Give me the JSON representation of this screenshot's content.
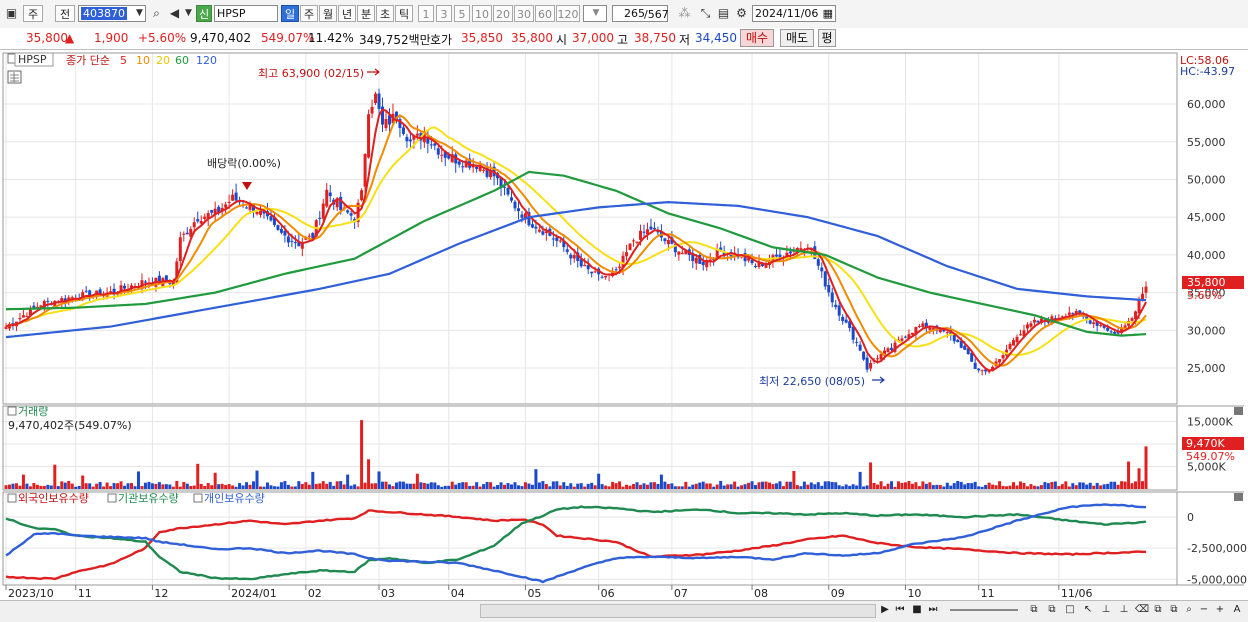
{
  "toolbar": {
    "period_week": "주",
    "period_prev": "전",
    "code": "403870",
    "badge": "신",
    "name": "HPSP",
    "periods": [
      "일",
      "주",
      "월",
      "년",
      "분",
      "초",
      "틱"
    ],
    "intervals": [
      "1",
      "3",
      "5",
      "10",
      "20",
      "30",
      "60",
      "120"
    ],
    "count": "265",
    "total": "/567",
    "date": "2024/11/06"
  },
  "quote": {
    "price": "35,800",
    "arrow": "▲",
    "change": "1,900",
    "rate": "+5.60%",
    "volume": "9,470,402",
    "vol_ratio": "549.07%",
    "turnover": "11.42%",
    "amount": "349,752백만",
    "ask_label": "호가",
    "ask": "35,850",
    "bid": "35,800",
    "open_label": "시",
    "open": "37,000",
    "high_label": "고",
    "high": "38,750",
    "low_label": "저",
    "low": "34,450",
    "buy": "매수",
    "sell": "매도",
    "eval": "평"
  },
  "legend": {
    "symbol": "HPSP",
    "ma_label": "종가 단순",
    "ma_periods": [
      "5",
      "10",
      "20",
      "60",
      "120"
    ],
    "ma_colors": [
      "#e02020",
      "#f08c00",
      "#f7e016",
      "#1f9a3c",
      "#2f5fd9"
    ]
  },
  "colors": {
    "up": "#e02020",
    "down": "#1c49c9",
    "foreign": "#e02020",
    "institution": "#1f8a50",
    "individual": "#2f5fd9",
    "grid": "#e6e6e6"
  },
  "chart_data": [
    {
      "type": "candlestick",
      "ylim": [
        20500,
        66500
      ],
      "yticks": [
        "25,000",
        "30,000",
        "35,000",
        "40,000",
        "45,000",
        "50,000",
        "55,000",
        "60,000"
      ],
      "lc": "LC:58.06",
      "hc": "HC:-43.97",
      "last_price": "35,800",
      "last_rate": "5.60%",
      "x_labels": [
        "2023/10",
        "11",
        "12",
        "2024/01",
        "02",
        "03",
        "04",
        "05",
        "06",
        "07",
        "08",
        "09",
        "10",
        "11",
        "11/06"
      ],
      "annotations": {
        "high": "최고 63,900 (02/15)",
        "low": "최저 22,650 (08/05)",
        "dividend": "배당락(0.00%)"
      },
      "close_anchors": [
        [
          0,
          30500
        ],
        [
          10,
          33500
        ],
        [
          20,
          34500
        ],
        [
          30,
          35000
        ],
        [
          40,
          36500
        ],
        [
          48,
          36500
        ],
        [
          50,
          42000
        ],
        [
          55,
          45000
        ],
        [
          60,
          45500
        ],
        [
          65,
          47500
        ],
        [
          72,
          46000
        ],
        [
          78,
          43000
        ],
        [
          84,
          41500
        ],
        [
          88,
          42500
        ],
        [
          92,
          48500
        ],
        [
          96,
          46000
        ],
        [
          100,
          45000
        ],
        [
          102,
          48000
        ],
        [
          104,
          59500
        ],
        [
          106,
          61000
        ],
        [
          108,
          57000
        ],
        [
          112,
          58500
        ],
        [
          116,
          55000
        ],
        [
          120,
          56000
        ],
        [
          125,
          53500
        ],
        [
          130,
          52500
        ],
        [
          135,
          52000
        ],
        [
          140,
          50500
        ],
        [
          145,
          47000
        ],
        [
          150,
          44500
        ],
        [
          155,
          43000
        ],
        [
          160,
          41000
        ],
        [
          165,
          38500
        ],
        [
          170,
          37000
        ],
        [
          175,
          37500
        ],
        [
          180,
          42000
        ],
        [
          185,
          43500
        ],
        [
          190,
          41500
        ],
        [
          195,
          40000
        ],
        [
          200,
          39000
        ],
        [
          205,
          40500
        ],
        [
          210,
          40000
        ],
        [
          215,
          38500
        ],
        [
          220,
          39500
        ],
        [
          225,
          40500
        ],
        [
          230,
          41500
        ],
        [
          233,
          38500
        ],
        [
          237,
          34000
        ],
        [
          242,
          30000
        ],
        [
          245,
          27500
        ],
        [
          247,
          25000
        ],
        [
          250,
          26500
        ],
        [
          254,
          27500
        ],
        [
          258,
          29500
        ],
        [
          262,
          30500
        ],
        [
          266,
          30500
        ],
        [
          270,
          29500
        ],
        [
          274,
          28000
        ],
        [
          278,
          25000
        ],
        [
          281,
          24500
        ],
        [
          285,
          26000
        ],
        [
          290,
          29500
        ],
        [
          295,
          31000
        ],
        [
          300,
          31500
        ],
        [
          305,
          32500
        ],
        [
          310,
          31500
        ],
        [
          315,
          30500
        ],
        [
          318,
          29500
        ],
        [
          321,
          30500
        ],
        [
          323,
          32000
        ],
        [
          325,
          34000
        ],
        [
          327,
          35800
        ]
      ],
      "ma60_anchors": [
        [
          0,
          32800
        ],
        [
          20,
          33000
        ],
        [
          40,
          33500
        ],
        [
          60,
          35000
        ],
        [
          80,
          37500
        ],
        [
          100,
          39500
        ],
        [
          120,
          44500
        ],
        [
          140,
          48500
        ],
        [
          150,
          51000
        ],
        [
          160,
          50500
        ],
        [
          175,
          48500
        ],
        [
          190,
          45500
        ],
        [
          205,
          43500
        ],
        [
          220,
          41000
        ],
        [
          235,
          40000
        ],
        [
          250,
          37000
        ],
        [
          265,
          35000
        ],
        [
          280,
          33500
        ],
        [
          295,
          32000
        ],
        [
          310,
          29800
        ],
        [
          320,
          29300
        ],
        [
          327,
          29500
        ]
      ],
      "ma120_anchors": [
        [
          0,
          29100
        ],
        [
          30,
          30500
        ],
        [
          60,
          33000
        ],
        [
          90,
          35500
        ],
        [
          110,
          37500
        ],
        [
          130,
          41500
        ],
        [
          150,
          45000
        ],
        [
          170,
          46300
        ],
        [
          190,
          47000
        ],
        [
          210,
          46500
        ],
        [
          230,
          45000
        ],
        [
          250,
          42500
        ],
        [
          270,
          38500
        ],
        [
          290,
          35500
        ],
        [
          310,
          34500
        ],
        [
          327,
          34000
        ]
      ]
    },
    {
      "type": "bar",
      "title": "거래량",
      "summary": "9,470,402주(549.07%)",
      "ylim": [
        0,
        18000
      ],
      "yticks": [
        "15,000K",
        "10,000K",
        "5,000K"
      ],
      "last_value": "9,470K",
      "last_ratio": "549.07%",
      "base_level": 1200,
      "spikes": [
        [
          5,
          3200
        ],
        [
          14,
          5400
        ],
        [
          22,
          3000
        ],
        [
          38,
          3900
        ],
        [
          55,
          5600
        ],
        [
          60,
          3600
        ],
        [
          72,
          4100
        ],
        [
          88,
          3800
        ],
        [
          98,
          3200
        ],
        [
          102,
          15300
        ],
        [
          104,
          6600
        ],
        [
          107,
          3900
        ],
        [
          118,
          3400
        ],
        [
          152,
          4400
        ],
        [
          170,
          3400
        ],
        [
          188,
          3200
        ],
        [
          226,
          4000
        ],
        [
          245,
          3800
        ],
        [
          248,
          5900
        ],
        [
          322,
          6100
        ],
        [
          325,
          4600
        ],
        [
          327,
          9470
        ]
      ]
    },
    {
      "type": "line",
      "series_labels": [
        "외국인보유수량",
        "기관보유수량",
        "개인보유수량"
      ],
      "ylim": [
        -5300000,
        1600000
      ],
      "yticks": [
        "0",
        "-2,500,000",
        "-5,000,000"
      ],
      "series": [
        {
          "name": "외국인보유수량",
          "anchors": [
            [
              0,
              -4800000
            ],
            [
              8,
              -4900000
            ],
            [
              14,
              -4950000
            ],
            [
              20,
              -4400000
            ],
            [
              30,
              -3800000
            ],
            [
              40,
              -2500000
            ],
            [
              44,
              -1200000
            ],
            [
              50,
              -900000
            ],
            [
              60,
              -600000
            ],
            [
              70,
              -300000
            ],
            [
              80,
              -600000
            ],
            [
              90,
              -300000
            ],
            [
              100,
              -100000
            ],
            [
              104,
              500000
            ],
            [
              110,
              400000
            ],
            [
              120,
              200000
            ],
            [
              130,
              0
            ],
            [
              140,
              -300000
            ],
            [
              148,
              -200000
            ],
            [
              154,
              -600000
            ],
            [
              158,
              -1500000
            ],
            [
              165,
              -1700000
            ],
            [
              175,
              -2000000
            ],
            [
              185,
              -3200000
            ],
            [
              200,
              -3000000
            ],
            [
              210,
              -2700000
            ],
            [
              220,
              -2300000
            ],
            [
              230,
              -1800000
            ],
            [
              240,
              -1500000
            ],
            [
              250,
              -2100000
            ],
            [
              260,
              -2400000
            ],
            [
              275,
              -2600000
            ],
            [
              290,
              -2900000
            ],
            [
              305,
              -3000000
            ],
            [
              315,
              -2900000
            ],
            [
              327,
              -2800000
            ]
          ]
        },
        {
          "name": "기관보유수량",
          "anchors": [
            [
              0,
              -100000
            ],
            [
              8,
              -900000
            ],
            [
              14,
              -1000000
            ],
            [
              20,
              -1500000
            ],
            [
              30,
              -1700000
            ],
            [
              40,
              -2000000
            ],
            [
              44,
              -3200000
            ],
            [
              50,
              -4400000
            ],
            [
              60,
              -4900000
            ],
            [
              70,
              -5000000
            ],
            [
              80,
              -4600000
            ],
            [
              90,
              -4300000
            ],
            [
              100,
              -4400000
            ],
            [
              104,
              -3500000
            ],
            [
              110,
              -3300000
            ],
            [
              120,
              -3700000
            ],
            [
              130,
              -3400000
            ],
            [
              140,
              -2300000
            ],
            [
              148,
              -500000
            ],
            [
              154,
              100000
            ],
            [
              158,
              600000
            ],
            [
              165,
              800000
            ],
            [
              175,
              700000
            ],
            [
              185,
              400000
            ],
            [
              200,
              600000
            ],
            [
              210,
              300000
            ],
            [
              220,
              300000
            ],
            [
              230,
              200000
            ],
            [
              240,
              300000
            ],
            [
              250,
              100000
            ],
            [
              260,
              200000
            ],
            [
              275,
              0
            ],
            [
              290,
              200000
            ],
            [
              305,
              -300000
            ],
            [
              315,
              -600000
            ],
            [
              327,
              -400000
            ]
          ]
        },
        {
          "name": "개인보유수량",
          "anchors": [
            [
              0,
              -3100000
            ],
            [
              8,
              -1400000
            ],
            [
              14,
              -1300000
            ],
            [
              20,
              -1500000
            ],
            [
              30,
              -1600000
            ],
            [
              40,
              -1700000
            ],
            [
              44,
              -2000000
            ],
            [
              50,
              -2200000
            ],
            [
              60,
              -2600000
            ],
            [
              70,
              -2500000
            ],
            [
              80,
              -2900000
            ],
            [
              90,
              -2700000
            ],
            [
              100,
              -3000000
            ],
            [
              104,
              -3300000
            ],
            [
              110,
              -3500000
            ],
            [
              120,
              -3600000
            ],
            [
              130,
              -3700000
            ],
            [
              140,
              -4300000
            ],
            [
              148,
              -4800000
            ],
            [
              154,
              -5200000
            ],
            [
              158,
              -4800000
            ],
            [
              165,
              -4100000
            ],
            [
              175,
              -3300000
            ],
            [
              185,
              -3200000
            ],
            [
              200,
              -3300000
            ],
            [
              210,
              -3200000
            ],
            [
              220,
              -3400000
            ],
            [
              230,
              -2900000
            ],
            [
              240,
              -3100000
            ],
            [
              250,
              -2900000
            ],
            [
              260,
              -2200000
            ],
            [
              275,
              -1600000
            ],
            [
              290,
              -300000
            ],
            [
              305,
              800000
            ],
            [
              315,
              1000000
            ],
            [
              327,
              800000
            ]
          ]
        }
      ]
    }
  ]
}
